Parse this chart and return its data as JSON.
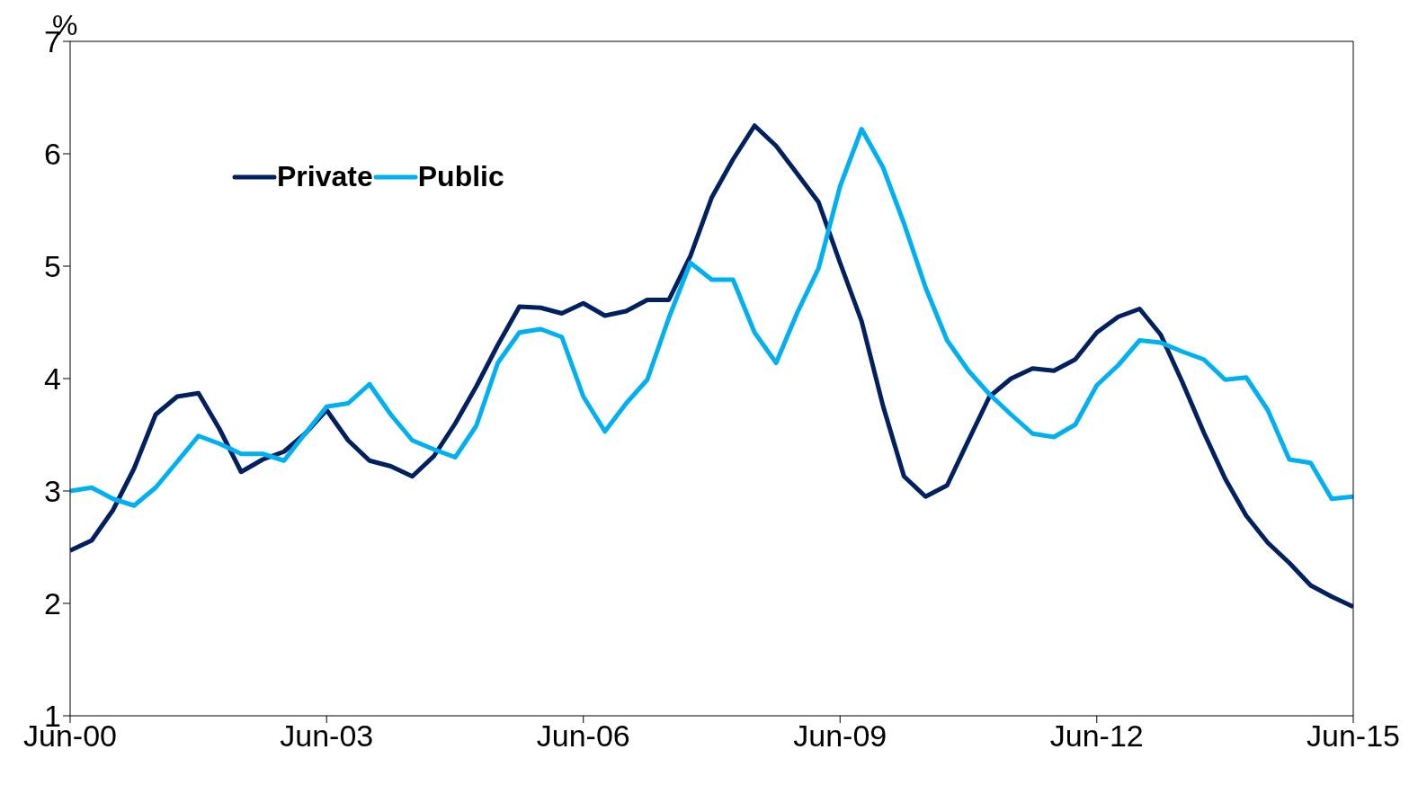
{
  "chart_data": {
    "type": "line",
    "ylabel": "%",
    "x": [
      "2000-06",
      "2000-09",
      "2000-12",
      "2001-03",
      "2001-06",
      "2001-09",
      "2001-12",
      "2002-03",
      "2002-06",
      "2002-09",
      "2002-12",
      "2003-03",
      "2003-06",
      "2003-09",
      "2003-12",
      "2004-03",
      "2004-06",
      "2004-09",
      "2004-12",
      "2005-03",
      "2005-06",
      "2005-09",
      "2005-12",
      "2006-03",
      "2006-06",
      "2006-09",
      "2006-12",
      "2007-03",
      "2007-06",
      "2007-09",
      "2007-12",
      "2008-03",
      "2008-06",
      "2008-09",
      "2008-12",
      "2009-03",
      "2009-06",
      "2009-09",
      "2009-12",
      "2010-03",
      "2010-06",
      "2010-09",
      "2010-12",
      "2011-03",
      "2011-06",
      "2011-09",
      "2011-12",
      "2012-03",
      "2012-06",
      "2012-09",
      "2012-12",
      "2013-03",
      "2013-06",
      "2013-09",
      "2013-12",
      "2014-03",
      "2014-06",
      "2014-09",
      "2014-12",
      "2015-03",
      "2015-06"
    ],
    "series": [
      {
        "name": "Private",
        "color": "#002060",
        "values": [
          2.47,
          2.56,
          2.83,
          3.2,
          3.68,
          3.84,
          3.87,
          3.55,
          3.17,
          3.28,
          3.35,
          3.51,
          3.72,
          3.45,
          3.27,
          3.22,
          3.13,
          3.31,
          3.6,
          3.93,
          4.3,
          4.64,
          4.63,
          4.58,
          4.67,
          4.56,
          4.6,
          4.7,
          4.7,
          5.09,
          5.61,
          5.95,
          6.25,
          6.07,
          5.82,
          5.57,
          5.03,
          4.51,
          3.76,
          3.13,
          2.95,
          3.05,
          3.45,
          3.84,
          4.0,
          4.09,
          4.07,
          4.17,
          4.41,
          4.55,
          4.62,
          4.39,
          3.97,
          3.52,
          3.11,
          2.78,
          2.54,
          2.36,
          2.16,
          2.06,
          1.97
        ]
      },
      {
        "name": "Public",
        "color": "#00b0f0",
        "values": [
          3.0,
          3.03,
          2.93,
          2.87,
          3.03,
          3.26,
          3.49,
          3.42,
          3.33,
          3.33,
          3.27,
          3.51,
          3.75,
          3.78,
          3.95,
          3.68,
          3.45,
          3.37,
          3.3,
          3.58,
          4.14,
          4.41,
          4.44,
          4.37,
          3.84,
          3.53,
          3.78,
          3.99,
          4.54,
          5.03,
          4.88,
          4.88,
          4.41,
          4.14,
          4.59,
          4.98,
          5.71,
          6.22,
          5.88,
          5.38,
          4.81,
          4.34,
          4.07,
          3.86,
          3.68,
          3.51,
          3.48,
          3.59,
          3.94,
          4.12,
          4.34,
          4.32,
          4.24,
          4.17,
          3.99,
          4.01,
          3.72,
          3.28,
          3.25,
          2.93,
          2.95
        ]
      }
    ],
    "xlim": [
      "2000-06",
      "2015-06"
    ],
    "xticks": [
      {
        "value": "2000-06",
        "label": "Jun-00"
      },
      {
        "value": "2003-06",
        "label": "Jun-03"
      },
      {
        "value": "2006-06",
        "label": "Jun-06"
      },
      {
        "value": "2009-06",
        "label": "Jun-09"
      },
      {
        "value": "2012-06",
        "label": "Jun-12"
      },
      {
        "value": "2015-06",
        "label": "Jun-15"
      }
    ],
    "ylim": [
      1,
      7
    ],
    "yticks": [
      1,
      2,
      3,
      4,
      5,
      6,
      7
    ],
    "grid": false,
    "legend": "top left",
    "marker": "none",
    "line_style": "solid"
  }
}
